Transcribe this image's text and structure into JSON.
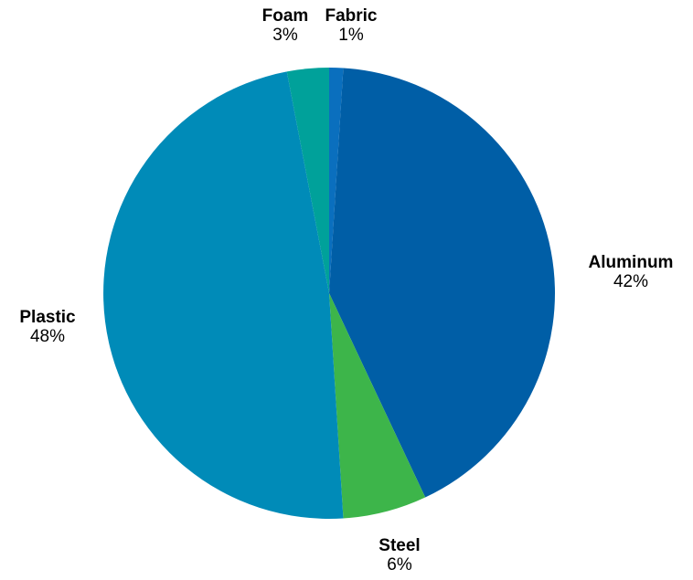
{
  "chart_data": {
    "type": "pie",
    "title": "",
    "slices": [
      {
        "label": "Fabric",
        "value": 1,
        "display": "1%",
        "color": "#0A6FBE"
      },
      {
        "label": "Aluminum",
        "value": 42,
        "display": "42%",
        "color": "#005EA6"
      },
      {
        "label": "Steel",
        "value": 6,
        "display": "6%",
        "color": "#3DB54A"
      },
      {
        "label": "Plastic",
        "value": 48,
        "display": "48%",
        "color": "#008BB8"
      },
      {
        "label": "Foam",
        "value": 3,
        "display": "3%",
        "color": "#00A19A"
      }
    ],
    "start": "top",
    "direction": "clockwise",
    "legend": "none"
  }
}
